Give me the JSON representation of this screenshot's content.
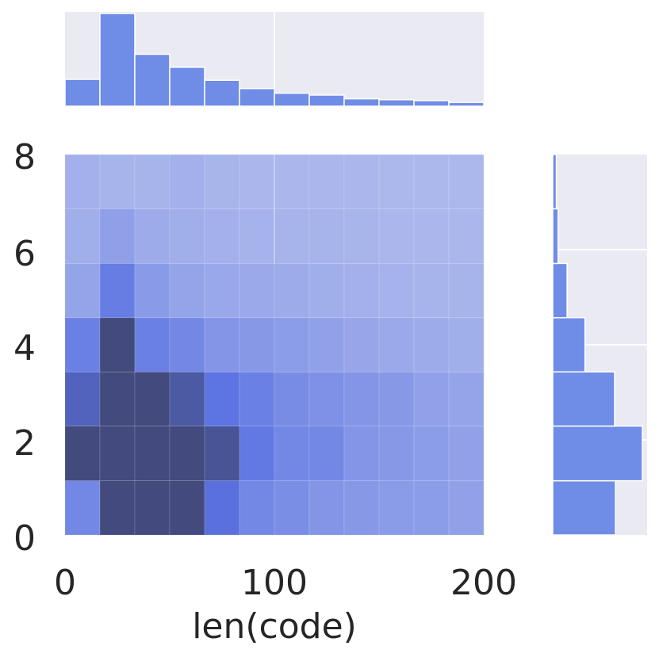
{
  "chart_data": [
    {
      "type": "heatmap",
      "role": "joint",
      "xlabel": "len(code)",
      "ylabel": "",
      "xlim": [
        0,
        200
      ],
      "ylim": [
        0,
        8
      ],
      "xticks": [
        "0",
        "100",
        "200"
      ],
      "yticks": [
        "0",
        "2",
        "4",
        "6",
        "8"
      ],
      "grid": true,
      "x_bin_edges": [
        0,
        16.67,
        33.33,
        50,
        66.67,
        83.33,
        100,
        116.67,
        133.33,
        150,
        166.67,
        183.33,
        200
      ],
      "y_bin_edges": [
        0,
        1.14,
        2.29,
        3.43,
        4.57,
        5.71,
        6.86,
        8
      ],
      "intensity_rows_bottom_to_top": [
        [
          0.45,
          1.0,
          1.0,
          1.0,
          0.62,
          0.45,
          0.4,
          0.35,
          0.33,
          0.31,
          0.3,
          0.27
        ],
        [
          1.0,
          1.0,
          1.0,
          1.0,
          0.9,
          0.55,
          0.45,
          0.45,
          0.35,
          0.33,
          0.3,
          0.27
        ],
        [
          0.75,
          1.0,
          1.0,
          0.85,
          0.58,
          0.5,
          0.42,
          0.38,
          0.35,
          0.33,
          0.27,
          0.25
        ],
        [
          0.5,
          1.0,
          0.5,
          0.45,
          0.35,
          0.33,
          0.3,
          0.27,
          0.23,
          0.21,
          0.2,
          0.18
        ],
        [
          0.25,
          0.52,
          0.32,
          0.25,
          0.22,
          0.21,
          0.2,
          0.18,
          0.16,
          0.15,
          0.14,
          0.14
        ],
        [
          0.18,
          0.28,
          0.2,
          0.18,
          0.16,
          0.15,
          0.14,
          0.14,
          0.13,
          0.12,
          0.12,
          0.12
        ],
        [
          0.16,
          0.14,
          0.14,
          0.16,
          0.13,
          0.12,
          0.12,
          0.12,
          0.12,
          0.11,
          0.11,
          0.11
        ]
      ]
    },
    {
      "type": "bar",
      "role": "marginal-x",
      "bin_edges": [
        0,
        16.67,
        33.33,
        50,
        66.67,
        83.33,
        100,
        116.67,
        133.33,
        150,
        166.67,
        183.33,
        200
      ],
      "values": [
        0.29,
        1.0,
        0.56,
        0.42,
        0.28,
        0.19,
        0.14,
        0.12,
        0.08,
        0.07,
        0.06,
        0.04
      ]
    },
    {
      "type": "bar",
      "role": "marginal-y",
      "orientation": "horizontal",
      "bin_edges": [
        0,
        1.14,
        2.29,
        3.43,
        4.57,
        5.71,
        6.86,
        8
      ],
      "values": [
        0.7,
        1.0,
        0.69,
        0.36,
        0.16,
        0.06,
        0.04
      ]
    }
  ],
  "colors": {
    "bar": "#6f8ce6",
    "bar_edge": "#ffffff",
    "panel_bg": "#eaeaf2",
    "grid": "#ffffff",
    "heat_dark": "#434a7d",
    "heat_mid": "#5a72e2",
    "heat_light": "#bec7ee"
  }
}
